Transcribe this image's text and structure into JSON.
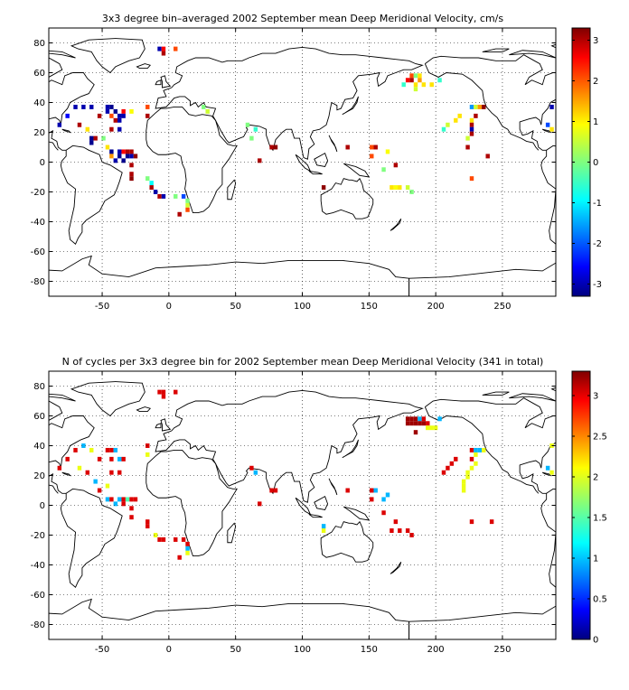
{
  "figures": [
    {
      "title": "3x3 degree bin–averaged 2002 September mean Deep Meridional Velocity, cm/s",
      "x_ticks": [
        "-50",
        "0",
        "50",
        "100",
        "150",
        "200",
        "250"
      ],
      "y_ticks": [
        "80",
        "60",
        "40",
        "20",
        "0",
        "-20",
        "-40",
        "-60",
        "-80"
      ],
      "colorbar_ticks": [
        "3",
        "2",
        "1",
        "0",
        "-1",
        "-2",
        "-3"
      ],
      "colorbar_range": [
        -3.3,
        3.3
      ]
    },
    {
      "title": "N of cycles per 3x3 degree bin for 2002 September mean Deep Meridional Velocity (341 in total)",
      "x_ticks": [
        "-50",
        "0",
        "50",
        "100",
        "150",
        "200",
        "250"
      ],
      "y_ticks": [
        "80",
        "60",
        "40",
        "20",
        "0",
        "-20",
        "-40",
        "-60",
        "-80"
      ],
      "colorbar_ticks": [
        "3",
        "2.5",
        "2",
        "1.5",
        "1",
        "0.5",
        "0"
      ],
      "colorbar_range": [
        0,
        3.3
      ]
    }
  ],
  "chart_data": [
    {
      "type": "heatmap",
      "title": "3x3 degree bin–averaged 2002 September mean Deep Meridional Velocity, cm/s",
      "xlim": [
        -90,
        290
      ],
      "ylim": [
        -90,
        90
      ],
      "grid": true,
      "colormap": "jet",
      "clim": [
        -3.3,
        3.3
      ],
      "bins": [
        {
          "lon": -7,
          "lat": 76,
          "v": -3.0
        },
        {
          "lon": -4,
          "lat": 76,
          "v": 2.5
        },
        {
          "lon": 5,
          "lat": 76,
          "v": 2.0
        },
        {
          "lon": -4,
          "lat": 73,
          "v": 3.0
        },
        {
          "lon": -70,
          "lat": 37,
          "v": -3.0
        },
        {
          "lon": -64,
          "lat": 37,
          "v": -3.0
        },
        {
          "lon": -58,
          "lat": 37,
          "v": -3.0
        },
        {
          "lon": -46,
          "lat": 37,
          "v": -3.0
        },
        {
          "lon": -43,
          "lat": 37,
          "v": -3.2
        },
        {
          "lon": -46,
          "lat": 34,
          "v": -3.0
        },
        {
          "lon": -40,
          "lat": 34,
          "v": -3.2
        },
        {
          "lon": -34,
          "lat": 34,
          "v": 2.5
        },
        {
          "lon": -28,
          "lat": 34,
          "v": 0.8
        },
        {
          "lon": -76,
          "lat": 31,
          "v": -2.5
        },
        {
          "lon": -52,
          "lat": 31,
          "v": 3.0
        },
        {
          "lon": -43,
          "lat": 31,
          "v": 2.0
        },
        {
          "lon": -37,
          "lat": 31,
          "v": -3.0
        },
        {
          "lon": -34,
          "lat": 31,
          "v": -3.0
        },
        {
          "lon": -40,
          "lat": 28,
          "v": 3.0
        },
        {
          "lon": -37,
          "lat": 28,
          "v": -3.0
        },
        {
          "lon": -82,
          "lat": 25,
          "v": -3.0
        },
        {
          "lon": -67,
          "lat": 25,
          "v": 3.0
        },
        {
          "lon": -61,
          "lat": 22,
          "v": 1.0
        },
        {
          "lon": -43,
          "lat": 22,
          "v": 3.0
        },
        {
          "lon": -37,
          "lat": 22,
          "v": -3.0
        },
        {
          "lon": -58,
          "lat": 16,
          "v": -3.2
        },
        {
          "lon": -55,
          "lat": 16,
          "v": 3.0
        },
        {
          "lon": -58,
          "lat": 13,
          "v": -3.2
        },
        {
          "lon": -49,
          "lat": 16,
          "v": 0.0
        },
        {
          "lon": -46,
          "lat": 10,
          "v": 1.0
        },
        {
          "lon": -43,
          "lat": 7,
          "v": -3.2
        },
        {
          "lon": -37,
          "lat": 7,
          "v": -3.0
        },
        {
          "lon": -34,
          "lat": 7,
          "v": 2.5
        },
        {
          "lon": -31,
          "lat": 7,
          "v": 3.0
        },
        {
          "lon": -43,
          "lat": 4,
          "v": 1.5
        },
        {
          "lon": -37,
          "lat": 4,
          "v": -3.2
        },
        {
          "lon": -31,
          "lat": 4,
          "v": -3.2
        },
        {
          "lon": -28,
          "lat": 4,
          "v": -3.0
        },
        {
          "lon": -28,
          "lat": 7,
          "v": 3.0
        },
        {
          "lon": -25,
          "lat": 4,
          "v": 3.2
        },
        {
          "lon": -40,
          "lat": 1,
          "v": -3.0
        },
        {
          "lon": -34,
          "lat": 1,
          "v": -3.2
        },
        {
          "lon": -28,
          "lat": -2,
          "v": 3.0
        },
        {
          "lon": -28,
          "lat": -8,
          "v": 3.0
        },
        {
          "lon": -28,
          "lat": -11,
          "v": 3.2
        },
        {
          "lon": -16,
          "lat": -11,
          "v": 0.0
        },
        {
          "lon": -13,
          "lat": -14,
          "v": -0.8
        },
        {
          "lon": -13,
          "lat": -17,
          "v": 3.0
        },
        {
          "lon": -10,
          "lat": -20,
          "v": -3.0
        },
        {
          "lon": -7,
          "lat": -23,
          "v": 3.0
        },
        {
          "lon": -4,
          "lat": -23,
          "v": -3.0
        },
        {
          "lon": 5,
          "lat": -23,
          "v": 0.0
        },
        {
          "lon": 11,
          "lat": -23,
          "v": -2.0
        },
        {
          "lon": 14,
          "lat": -26,
          "v": 0.0
        },
        {
          "lon": 14,
          "lat": -29,
          "v": 0.5
        },
        {
          "lon": 14,
          "lat": -32,
          "v": 2.0
        },
        {
          "lon": 8,
          "lat": -35,
          "v": 3.0
        },
        {
          "lon": -16,
          "lat": 37,
          "v": 2.0
        },
        {
          "lon": -16,
          "lat": 31,
          "v": 3.0
        },
        {
          "lon": 26,
          "lat": 37,
          "v": 0.0
        },
        {
          "lon": 29,
          "lat": 34,
          "v": 0.5
        },
        {
          "lon": 59,
          "lat": 25,
          "v": 0.0
        },
        {
          "lon": 65,
          "lat": 22,
          "v": -0.5
        },
        {
          "lon": 62,
          "lat": 16,
          "v": 0.0
        },
        {
          "lon": 68,
          "lat": 1,
          "v": 3.0
        },
        {
          "lon": 77,
          "lat": 10,
          "v": 3.0
        },
        {
          "lon": 80,
          "lat": 10,
          "v": 3.2
        },
        {
          "lon": 116,
          "lat": -17,
          "v": 3.2
        },
        {
          "lon": 134,
          "lat": 10,
          "v": 3.0
        },
        {
          "lon": 152,
          "lat": 10,
          "v": 2.0
        },
        {
          "lon": 155,
          "lat": 10,
          "v": 3.0
        },
        {
          "lon": 152,
          "lat": 4,
          "v": 2.0
        },
        {
          "lon": 164,
          "lat": 7,
          "v": 0.8
        },
        {
          "lon": 161,
          "lat": -5,
          "v": 0.0
        },
        {
          "lon": 170,
          "lat": -2,
          "v": 3.0
        },
        {
          "lon": 167,
          "lat": -17,
          "v": 1.0
        },
        {
          "lon": 170,
          "lat": -17,
          "v": 0.8
        },
        {
          "lon": 173,
          "lat": -17,
          "v": 1.0
        },
        {
          "lon": 179,
          "lat": -17,
          "v": 0.5
        },
        {
          "lon": 182,
          "lat": -20,
          "v": 0.0
        },
        {
          "lon": 182,
          "lat": 58,
          "v": 2.0
        },
        {
          "lon": 185,
          "lat": 58,
          "v": 0.0
        },
        {
          "lon": 188,
          "lat": 58,
          "v": 1.0
        },
        {
          "lon": 179,
          "lat": 55,
          "v": 2.5
        },
        {
          "lon": 182,
          "lat": 55,
          "v": 3.0
        },
        {
          "lon": 188,
          "lat": 55,
          "v": 1.5
        },
        {
          "lon": 185,
          "lat": 52,
          "v": 1.0
        },
        {
          "lon": 191,
          "lat": 52,
          "v": 1.0
        },
        {
          "lon": 197,
          "lat": 52,
          "v": 1.0
        },
        {
          "lon": 185,
          "lat": 49,
          "v": 0.5
        },
        {
          "lon": 176,
          "lat": 52,
          "v": -0.5
        },
        {
          "lon": 203,
          "lat": 55,
          "v": -0.5
        },
        {
          "lon": 218,
          "lat": 31,
          "v": 1.0
        },
        {
          "lon": 215,
          "lat": 28,
          "v": 1.0
        },
        {
          "lon": 209,
          "lat": 25,
          "v": 0.5
        },
        {
          "lon": 206,
          "lat": 22,
          "v": -0.5
        },
        {
          "lon": 227,
          "lat": 37,
          "v": -1.5
        },
        {
          "lon": 230,
          "lat": 37,
          "v": 0.5
        },
        {
          "lon": 233,
          "lat": 37,
          "v": 1.5
        },
        {
          "lon": 236,
          "lat": 37,
          "v": 3.2
        },
        {
          "lon": 230,
          "lat": 31,
          "v": 3.0
        },
        {
          "lon": 227,
          "lat": 28,
          "v": 1.0
        },
        {
          "lon": 227,
          "lat": 25,
          "v": 3.0
        },
        {
          "lon": 227,
          "lat": 22,
          "v": -3.0
        },
        {
          "lon": 227,
          "lat": 19,
          "v": 3.0
        },
        {
          "lon": 224,
          "lat": 16,
          "v": 0.5
        },
        {
          "lon": 224,
          "lat": 10,
          "v": 3.0
        },
        {
          "lon": 239,
          "lat": 4,
          "v": 3.0
        },
        {
          "lon": 227,
          "lat": -11,
          "v": 2.0
        },
        {
          "lon": 287,
          "lat": 37,
          "v": -3.0
        },
        {
          "lon": 284,
          "lat": 25,
          "v": -2.0
        },
        {
          "lon": 287,
          "lat": 22,
          "v": 1.0
        }
      ]
    },
    {
      "type": "heatmap",
      "title": "N of cycles per 3x3 degree bin for 2002 September mean Deep Meridional Velocity (341 in total)",
      "xlim": [
        -90,
        290
      ],
      "ylim": [
        -90,
        90
      ],
      "grid": true,
      "colormap": "jet",
      "clim": [
        0,
        3.3
      ],
      "bins": [
        {
          "lon": -7,
          "lat": 76,
          "v": 3.0
        },
        {
          "lon": -4,
          "lat": 76,
          "v": 3.0
        },
        {
          "lon": 5,
          "lat": 76,
          "v": 3.0
        },
        {
          "lon": -4,
          "lat": 73,
          "v": 3.0
        },
        {
          "lon": -70,
          "lat": 37,
          "v": 3.0
        },
        {
          "lon": -64,
          "lat": 40,
          "v": 1.0
        },
        {
          "lon": -58,
          "lat": 37,
          "v": 2.0
        },
        {
          "lon": -46,
          "lat": 37,
          "v": 3.0
        },
        {
          "lon": -43,
          "lat": 37,
          "v": 3.0
        },
        {
          "lon": -40,
          "lat": 37,
          "v": 1.0
        },
        {
          "lon": -16,
          "lat": 40,
          "v": 3.0
        },
        {
          "lon": -16,
          "lat": 34,
          "v": 2.0
        },
        {
          "lon": -76,
          "lat": 31,
          "v": 3.0
        },
        {
          "lon": -52,
          "lat": 31,
          "v": 3.0
        },
        {
          "lon": -43,
          "lat": 31,
          "v": 3.0
        },
        {
          "lon": -37,
          "lat": 31,
          "v": 1.0
        },
        {
          "lon": -34,
          "lat": 31,
          "v": 3.0
        },
        {
          "lon": -82,
          "lat": 25,
          "v": 3.0
        },
        {
          "lon": -67,
          "lat": 25,
          "v": 2.0
        },
        {
          "lon": -61,
          "lat": 22,
          "v": 3.0
        },
        {
          "lon": -43,
          "lat": 22,
          "v": 3.0
        },
        {
          "lon": -37,
          "lat": 22,
          "v": 3.0
        },
        {
          "lon": -55,
          "lat": 16,
          "v": 1.0
        },
        {
          "lon": -46,
          "lat": 13,
          "v": 2.0
        },
        {
          "lon": -52,
          "lat": 10,
          "v": 3.0
        },
        {
          "lon": -46,
          "lat": 4,
          "v": 1.0
        },
        {
          "lon": -43,
          "lat": 4,
          "v": 3.0
        },
        {
          "lon": -37,
          "lat": 4,
          "v": 1.0
        },
        {
          "lon": -34,
          "lat": 4,
          "v": 3.0
        },
        {
          "lon": -31,
          "lat": 4,
          "v": 1.5
        },
        {
          "lon": -28,
          "lat": 4,
          "v": 3.0
        },
        {
          "lon": -25,
          "lat": 4,
          "v": 3.0
        },
        {
          "lon": -40,
          "lat": 1,
          "v": 1.0
        },
        {
          "lon": -34,
          "lat": 1,
          "v": 3.0
        },
        {
          "lon": -28,
          "lat": -2,
          "v": 3.0
        },
        {
          "lon": -28,
          "lat": -8,
          "v": 3.0
        },
        {
          "lon": -16,
          "lat": -11,
          "v": 3.0
        },
        {
          "lon": -16,
          "lat": -14,
          "v": 3.0
        },
        {
          "lon": -10,
          "lat": -20,
          "v": 2.0
        },
        {
          "lon": -7,
          "lat": -23,
          "v": 3.0
        },
        {
          "lon": -4,
          "lat": -23,
          "v": 3.0
        },
        {
          "lon": 5,
          "lat": -23,
          "v": 3.0
        },
        {
          "lon": 11,
          "lat": -23,
          "v": 3.0
        },
        {
          "lon": 14,
          "lat": -26,
          "v": 3.0
        },
        {
          "lon": 14,
          "lat": -29,
          "v": 1.0
        },
        {
          "lon": 14,
          "lat": -32,
          "v": 2.0
        },
        {
          "lon": 8,
          "lat": -35,
          "v": 3.0
        },
        {
          "lon": 62,
          "lat": 25,
          "v": 3.0
        },
        {
          "lon": 65,
          "lat": 22,
          "v": 1.0
        },
        {
          "lon": 68,
          "lat": 1,
          "v": 3.0
        },
        {
          "lon": 77,
          "lat": 10,
          "v": 3.0
        },
        {
          "lon": 80,
          "lat": 10,
          "v": 3.0
        },
        {
          "lon": 116,
          "lat": -17,
          "v": 2.0
        },
        {
          "lon": 116,
          "lat": -14,
          "v": 1.0
        },
        {
          "lon": 134,
          "lat": 10,
          "v": 3.0
        },
        {
          "lon": 152,
          "lat": 10,
          "v": 3.0
        },
        {
          "lon": 155,
          "lat": 10,
          "v": 1.0
        },
        {
          "lon": 152,
          "lat": 4,
          "v": 3.0
        },
        {
          "lon": 161,
          "lat": 4,
          "v": 1.0
        },
        {
          "lon": 164,
          "lat": 7,
          "v": 1.0
        },
        {
          "lon": 161,
          "lat": -5,
          "v": 3.0
        },
        {
          "lon": 170,
          "lat": -11,
          "v": 3.0
        },
        {
          "lon": 167,
          "lat": -17,
          "v": 3.0
        },
        {
          "lon": 173,
          "lat": -17,
          "v": 3.0
        },
        {
          "lon": 179,
          "lat": -17,
          "v": 3.0
        },
        {
          "lon": 182,
          "lat": -20,
          "v": 3.0
        },
        {
          "lon": 179,
          "lat": 58,
          "v": 3.2
        },
        {
          "lon": 182,
          "lat": 58,
          "v": 3.2
        },
        {
          "lon": 185,
          "lat": 58,
          "v": 3.2
        },
        {
          "lon": 188,
          "lat": 58,
          "v": 1.0
        },
        {
          "lon": 191,
          "lat": 58,
          "v": 3.0
        },
        {
          "lon": 179,
          "lat": 55,
          "v": 3.2
        },
        {
          "lon": 182,
          "lat": 55,
          "v": 3.2
        },
        {
          "lon": 185,
          "lat": 55,
          "v": 3.2
        },
        {
          "lon": 188,
          "lat": 55,
          "v": 3.2
        },
        {
          "lon": 191,
          "lat": 55,
          "v": 3.2
        },
        {
          "lon": 194,
          "lat": 55,
          "v": 3.0
        },
        {
          "lon": 194,
          "lat": 52,
          "v": 2.0
        },
        {
          "lon": 197,
          "lat": 52,
          "v": 2.0
        },
        {
          "lon": 200,
          "lat": 52,
          "v": 2.0
        },
        {
          "lon": 185,
          "lat": 49,
          "v": 3.2
        },
        {
          "lon": 203,
          "lat": 58,
          "v": 1.0
        },
        {
          "lon": 206,
          "lat": 22,
          "v": 3.0
        },
        {
          "lon": 209,
          "lat": 25,
          "v": 3.0
        },
        {
          "lon": 212,
          "lat": 28,
          "v": 3.0
        },
        {
          "lon": 215,
          "lat": 31,
          "v": 3.0
        },
        {
          "lon": 227,
          "lat": 37,
          "v": 3.0
        },
        {
          "lon": 230,
          "lat": 37,
          "v": 1.0
        },
        {
          "lon": 233,
          "lat": 37,
          "v": 1.0
        },
        {
          "lon": 236,
          "lat": 37,
          "v": 2.0
        },
        {
          "lon": 230,
          "lat": 34,
          "v": 2.0
        },
        {
          "lon": 227,
          "lat": 31,
          "v": 3.0
        },
        {
          "lon": 230,
          "lat": 28,
          "v": 2.0
        },
        {
          "lon": 227,
          "lat": 25,
          "v": 2.0
        },
        {
          "lon": 224,
          "lat": 22,
          "v": 2.0
        },
        {
          "lon": 224,
          "lat": 19,
          "v": 2.0
        },
        {
          "lon": 221,
          "lat": 16,
          "v": 2.0
        },
        {
          "lon": 221,
          "lat": 13,
          "v": 2.0
        },
        {
          "lon": 221,
          "lat": 10,
          "v": 2.0
        },
        {
          "lon": 227,
          "lat": -11,
          "v": 3.0
        },
        {
          "lon": 242,
          "lat": -11,
          "v": 3.0
        },
        {
          "lon": 287,
          "lat": 40,
          "v": 2.0
        },
        {
          "lon": 284,
          "lat": 25,
          "v": 1.0
        },
        {
          "lon": 287,
          "lat": 22,
          "v": 2.0
        }
      ]
    }
  ]
}
